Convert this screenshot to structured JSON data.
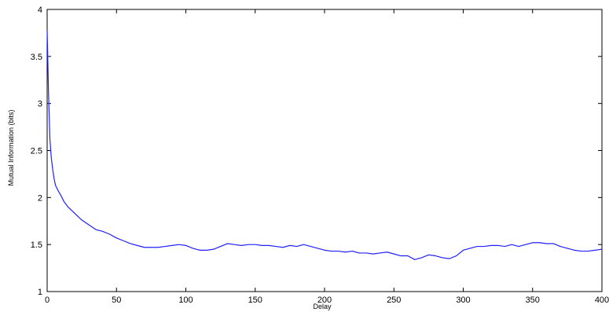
{
  "chart_data": {
    "type": "line",
    "title": "",
    "xlabel": "Delay",
    "ylabel": "Mutual Information (bits)",
    "xlim": [
      0,
      400
    ],
    "ylim": [
      1,
      4
    ],
    "xticks": [
      0,
      50,
      100,
      150,
      200,
      250,
      300,
      350,
      400
    ],
    "yticks": [
      1,
      1.5,
      2,
      2.5,
      3,
      3.5,
      4
    ],
    "xtick_labels": [
      "0",
      "50",
      "100",
      "150",
      "200",
      "250",
      "300",
      "350",
      "400"
    ],
    "ytick_labels": [
      "1",
      "1.5",
      "2",
      "2.5",
      "3",
      "3.5",
      "4"
    ],
    "grid": false,
    "legend": "none",
    "line_color": "#2020ff",
    "series": [
      {
        "x": [
          0,
          1,
          2,
          3,
          4,
          5,
          6,
          8,
          10,
          12,
          15,
          20,
          25,
          30,
          35,
          40,
          45,
          50,
          55,
          60,
          65,
          70,
          75,
          80,
          85,
          90,
          95,
          100,
          105,
          110,
          115,
          120,
          125,
          130,
          135,
          140,
          145,
          150,
          155,
          160,
          165,
          170,
          175,
          180,
          185,
          190,
          195,
          200,
          205,
          210,
          215,
          220,
          225,
          230,
          235,
          240,
          245,
          250,
          255,
          260,
          265,
          270,
          275,
          280,
          285,
          290,
          295,
          300,
          305,
          310,
          315,
          320,
          325,
          330,
          335,
          340,
          345,
          350,
          355,
          360,
          365,
          370,
          375,
          380,
          385,
          390,
          395,
          400
        ],
        "y": [
          3.78,
          3.1,
          2.62,
          2.42,
          2.3,
          2.2,
          2.13,
          2.07,
          2.02,
          1.96,
          1.9,
          1.83,
          1.76,
          1.71,
          1.66,
          1.64,
          1.61,
          1.57,
          1.54,
          1.51,
          1.49,
          1.47,
          1.47,
          1.47,
          1.48,
          1.49,
          1.5,
          1.49,
          1.46,
          1.44,
          1.44,
          1.45,
          1.48,
          1.51,
          1.5,
          1.49,
          1.5,
          1.5,
          1.49,
          1.49,
          1.48,
          1.47,
          1.49,
          1.48,
          1.5,
          1.48,
          1.46,
          1.44,
          1.43,
          1.43,
          1.42,
          1.43,
          1.41,
          1.41,
          1.4,
          1.41,
          1.42,
          1.4,
          1.38,
          1.38,
          1.34,
          1.36,
          1.39,
          1.38,
          1.36,
          1.35,
          1.38,
          1.44,
          1.46,
          1.48,
          1.48,
          1.49,
          1.49,
          1.48,
          1.5,
          1.48,
          1.5,
          1.52,
          1.52,
          1.51,
          1.51,
          1.48,
          1.46,
          1.44,
          1.43,
          1.43,
          1.44,
          1.45
        ]
      }
    ]
  }
}
